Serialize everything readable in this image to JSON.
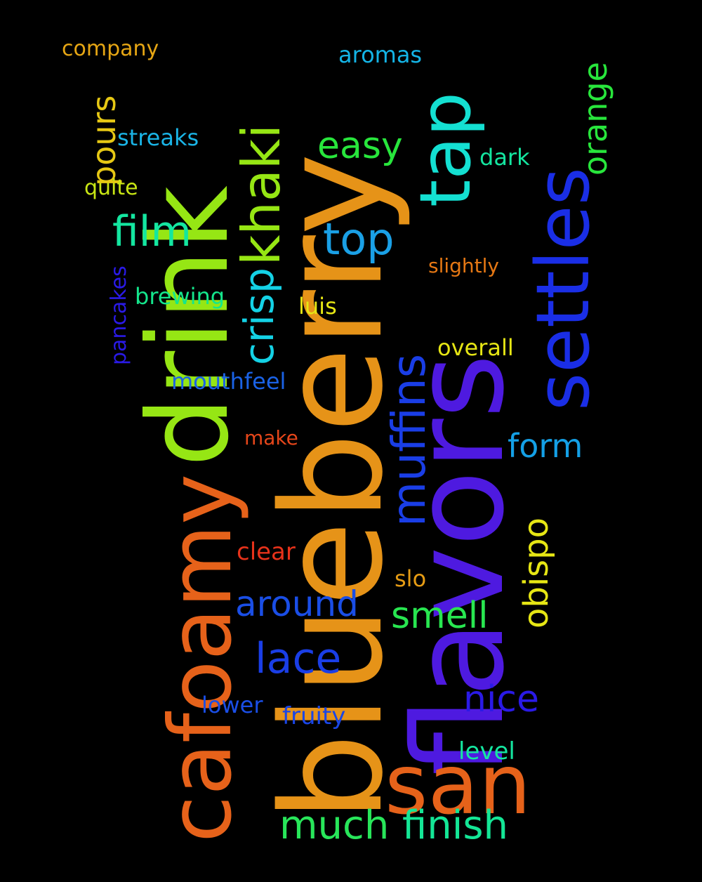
{
  "words": {
    "blueberry": {
      "text": "blueberry",
      "color": "#e69318"
    },
    "flavors": {
      "text": "flavors",
      "color": "#4e1ae0"
    },
    "drink": {
      "text": "drink",
      "color": "#96e614"
    },
    "cafoamy": {
      "text": "cafoamy",
      "color": "#e6621a"
    },
    "san": {
      "text": "san",
      "color": "#e6621a"
    },
    "settles": {
      "text": "settles",
      "color": "#1a2ee6"
    },
    "tap": {
      "text": "tap",
      "color": "#14e0d2"
    },
    "khaki": {
      "text": "khaki",
      "color": "#96e614"
    },
    "crisp": {
      "text": "crisp",
      "color": "#14d2e6"
    },
    "muffins": {
      "text": "muffins",
      "color": "#1a3ee6"
    },
    "obispo": {
      "text": "obispo",
      "color": "#e6e614"
    },
    "orange": {
      "text": "orange",
      "color": "#28e63c"
    },
    "pours": {
      "text": "pours",
      "color": "#e6c814"
    },
    "pancakes": {
      "text": "pancakes",
      "color": "#2a1ae6"
    },
    "company": {
      "text": "company",
      "color": "#e6a614"
    },
    "aromas": {
      "text": "aromas",
      "color": "#14b4e6"
    },
    "streaks": {
      "text": "streaks",
      "color": "#1ab4e6"
    },
    "easy": {
      "text": "easy",
      "color": "#28e63c"
    },
    "dark": {
      "text": "dark",
      "color": "#14e6a0"
    },
    "quite": {
      "text": "quite",
      "color": "#c8e614"
    },
    "film": {
      "text": "film",
      "color": "#14e6a0"
    },
    "top": {
      "text": "top",
      "color": "#1aa0e6"
    },
    "slightly": {
      "text": "slightly",
      "color": "#e67814"
    },
    "brewing": {
      "text": "brewing",
      "color": "#14e68c"
    },
    "luis": {
      "text": "luis",
      "color": "#e6e614"
    },
    "overall": {
      "text": "overall",
      "color": "#e6e614"
    },
    "mouthfeel": {
      "text": "mouthfeel",
      "color": "#1a62e6"
    },
    "make": {
      "text": "make",
      "color": "#e6461a"
    },
    "form": {
      "text": "form",
      "color": "#14a0e6"
    },
    "clear": {
      "text": "clear",
      "color": "#e6321a"
    },
    "slo": {
      "text": "slo",
      "color": "#e69c14"
    },
    "around": {
      "text": "around",
      "color": "#1a4ee6"
    },
    "smell": {
      "text": "smell",
      "color": "#28e650"
    },
    "lace": {
      "text": "lace",
      "color": "#1a3ee6"
    },
    "lower": {
      "text": "lower",
      "color": "#1a4ee6"
    },
    "fruity": {
      "text": "fruity",
      "color": "#1a46e6"
    },
    "nice": {
      "text": "nice",
      "color": "#2a1ae6"
    },
    "level": {
      "text": "level",
      "color": "#14e6a0"
    },
    "much": {
      "text": "much",
      "color": "#28e65a"
    },
    "finish": {
      "text": "finish",
      "color": "#14e696"
    }
  }
}
